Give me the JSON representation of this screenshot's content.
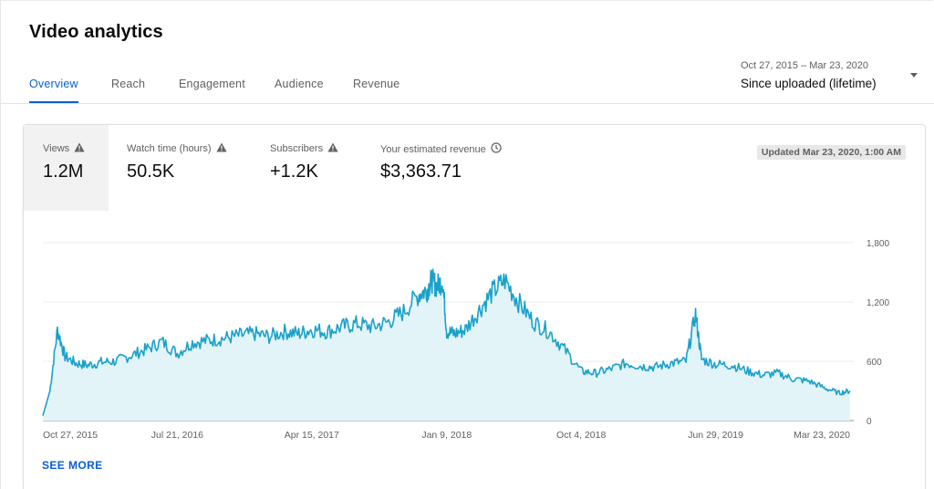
{
  "header": {
    "title": "Video analytics"
  },
  "tabs": [
    {
      "label": "Overview",
      "active": true
    },
    {
      "label": "Reach",
      "active": false
    },
    {
      "label": "Engagement",
      "active": false
    },
    {
      "label": "Audience",
      "active": false
    },
    {
      "label": "Revenue",
      "active": false
    }
  ],
  "date_picker": {
    "range": "Oct 27, 2015 – Mar 23, 2020",
    "label": "Since uploaded (lifetime)",
    "icon": "dropdown-arrow-icon"
  },
  "metrics": [
    {
      "label": "Views",
      "value": "1.2M",
      "icon": "warning-icon",
      "selected": true
    },
    {
      "label": "Watch time (hours)",
      "value": "50.5K",
      "icon": "warning-icon",
      "selected": false
    },
    {
      "label": "Subscribers",
      "value": "+1.2K",
      "icon": "warning-icon",
      "selected": false
    },
    {
      "label": "Your estimated revenue",
      "value": "$3,363.71",
      "icon": "clock-icon",
      "selected": false
    }
  ],
  "updated": "Updated Mar 23, 2020, 1:00 AM",
  "see_more": "SEE MORE",
  "colors": {
    "accent": "#065fd4",
    "line": "#1aa1c9",
    "fill": "#e3f4f9"
  },
  "chart_data": {
    "type": "area",
    "series": [
      {
        "x": [
          "2015-10-27",
          "2015-11-10",
          "2015-11-25",
          "2015-12-10",
          "2016-01-01",
          "2016-01-25",
          "2016-02-20",
          "2016-03-20",
          "2016-04-20",
          "2016-05-20",
          "2016-06-20",
          "2016-07-21",
          "2016-08-20",
          "2016-09-20",
          "2016-10-20",
          "2016-11-20",
          "2016-12-20",
          "2017-01-20",
          "2017-02-20",
          "2017-03-20",
          "2017-04-15",
          "2017-05-15",
          "2017-06-15",
          "2017-07-15",
          "2017-08-15",
          "2017-09-15",
          "2017-10-15",
          "2017-11-15",
          "2017-12-01",
          "2017-12-10",
          "2017-12-20",
          "2018-01-01",
          "2018-01-09",
          "2018-01-25",
          "2018-02-15",
          "2018-03-15",
          "2018-04-10",
          "2018-05-05",
          "2018-06-01",
          "2018-07-01",
          "2018-08-01",
          "2018-09-01",
          "2018-10-04",
          "2018-11-01",
          "2018-12-01",
          "2019-01-01",
          "2019-02-01",
          "2019-03-01",
          "2019-04-01",
          "2019-05-01",
          "2019-05-20",
          "2019-06-01",
          "2019-06-29",
          "2019-08-01",
          "2019-09-01",
          "2019-10-01",
          "2019-11-01",
          "2019-12-01",
          "2020-01-01",
          "2020-02-01",
          "2020-03-01",
          "2020-03-23"
        ],
        "values": [
          50,
          300,
          920,
          650,
          580,
          560,
          590,
          600,
          660,
          720,
          800,
          680,
          790,
          810,
          830,
          860,
          880,
          850,
          900,
          880,
          920,
          900,
          950,
          980,
          950,
          1000,
          1100,
          1280,
          1320,
          1420,
          1360,
          1410,
          900,
          880,
          920,
          1120,
          1300,
          1420,
          1200,
          1000,
          900,
          720,
          500,
          480,
          520,
          580,
          550,
          540,
          580,
          600,
          1080,
          620,
          570,
          560,
          500,
          460,
          480,
          420,
          400,
          330,
          280,
          300
        ]
      }
    ],
    "x_tick_labels": [
      "Oct 27, 2015",
      "Jul 21, 2016",
      "Apr 15, 2017",
      "Jan 9, 2018",
      "Oct 4, 2018",
      "Jun 29, 2019",
      "Mar 23, 2020"
    ],
    "y_tick_labels": [
      "1,800",
      "1,200",
      "600",
      "0"
    ],
    "ylim": [
      0,
      1800
    ],
    "grid": true
  }
}
